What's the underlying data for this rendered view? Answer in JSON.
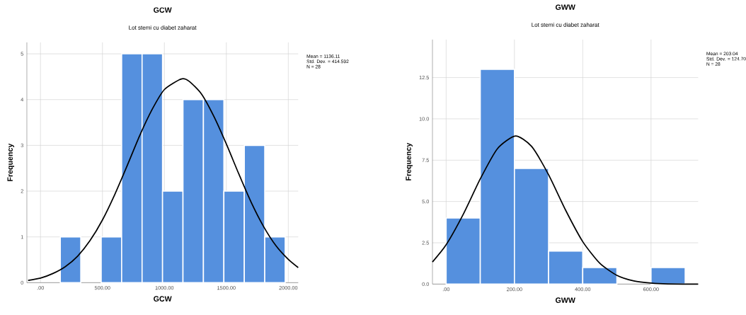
{
  "chart_data": [
    {
      "type": "histogram",
      "title": "GCW",
      "subtitle": "Lot stemi cu diabet zaharat",
      "xlabel": "GCW",
      "ylabel": "Frequency",
      "bins": [
        160,
        325,
        490,
        655,
        820,
        985,
        1150,
        1315,
        1480,
        1645,
        1810,
        1975
      ],
      "values": [
        1,
        0,
        1,
        5,
        5,
        2,
        4,
        4,
        2,
        3,
        1
      ],
      "color": "#5590de",
      "series": [
        {
          "type": "line",
          "color": "#000000",
          "x": [
            -100,
            0,
            100,
            200,
            300,
            400,
            500,
            600,
            700,
            800,
            900,
            1000,
            1136,
            1200,
            1300,
            1400,
            1500,
            1600,
            1700,
            1800,
            1900,
            2000,
            2080
          ],
          "values": [
            0.05,
            0.1,
            0.2,
            0.35,
            0.58,
            0.92,
            1.37,
            1.93,
            2.56,
            3.21,
            3.78,
            4.22,
            4.45,
            4.4,
            4.12,
            3.63,
            3.03,
            2.38,
            1.76,
            1.23,
            0.81,
            0.51,
            0.33
          ]
        }
      ],
      "xlim": [
        -110,
        2080
      ],
      "ylim": [
        0,
        5.25
      ],
      "xticks": [
        {
          "value": 0,
          "label": ".00"
        },
        {
          "value": 500,
          "label": "500.00"
        },
        {
          "value": 1000,
          "label": "1000.00"
        },
        {
          "value": 1500,
          "label": "1500.00"
        },
        {
          "value": 2000,
          "label": "2000.00"
        }
      ],
      "yticks": [
        0,
        1,
        2,
        3,
        4,
        5
      ],
      "grid": true,
      "annotations": [
        "Mean = 1136.11",
        "Std. Dev. = 414.592",
        "N = 28"
      ]
    },
    {
      "type": "histogram",
      "title": "GWW",
      "subtitle": "Lot stemi cu diabet zaharat",
      "xlabel": "GWW",
      "ylabel": "Frequency",
      "bins": [
        0,
        100,
        200,
        300,
        400,
        500,
        600,
        700
      ],
      "values": [
        4,
        13,
        7,
        2,
        1,
        0,
        1
      ],
      "color": "#5590de",
      "series": [
        {
          "type": "line",
          "color": "#000000",
          "x": [
            -40,
            0,
            50,
            100,
            150,
            203,
            250,
            300,
            350,
            400,
            450,
            500,
            550,
            600,
            650,
            738
          ],
          "values": [
            1.34,
            2.38,
            4.22,
            6.37,
            8.19,
            8.96,
            8.34,
            6.62,
            4.47,
            2.57,
            1.26,
            0.53,
            0.19,
            0.06,
            0.01,
            0.0
          ]
        }
      ],
      "xlim": [
        -40,
        738
      ],
      "ylim": [
        0,
        14.8
      ],
      "xticks": [
        {
          "value": 0,
          "label": ".00"
        },
        {
          "value": 200,
          "label": "200.00"
        },
        {
          "value": 400,
          "label": "400.00"
        },
        {
          "value": 600,
          "label": "600.00"
        }
      ],
      "yticks": [
        {
          "value": 0,
          "label": "0.0"
        },
        2.5,
        {
          "value": 5,
          "label": "5.0"
        },
        7.5,
        {
          "value": 10,
          "label": "10.0"
        },
        12.5
      ],
      "grid": true,
      "annotations": [
        "Mean = 203.04",
        "Std. Dev. = 124.70",
        "N = 28"
      ]
    }
  ]
}
